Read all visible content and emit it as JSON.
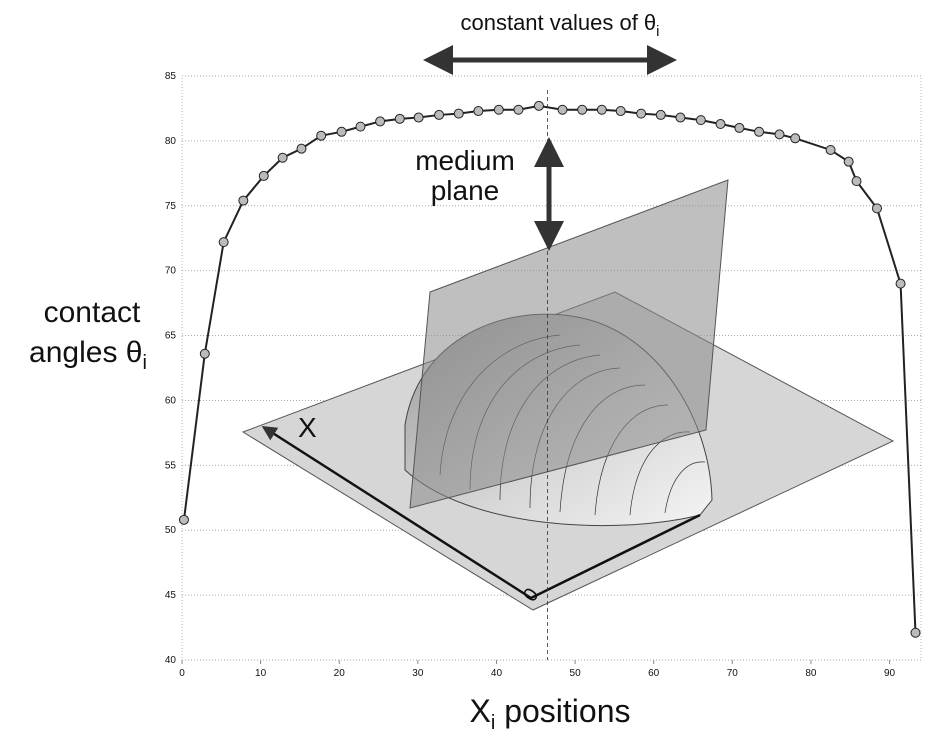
{
  "chart_data": {
    "type": "line",
    "annotations": {
      "top": {
        "text": "constant values of θ",
        "sub": "i"
      },
      "middle": [
        "medium",
        "plane"
      ],
      "axis_origin": "0",
      "axis_name": "X"
    },
    "y_label": {
      "lines": [
        "contact",
        "angles θ"
      ],
      "sub": "i"
    },
    "x_label": {
      "text": "X",
      "sub": "i",
      "rest": " positions"
    },
    "x": [
      0.25,
      2.9,
      5.3,
      7.8,
      10.4,
      12.8,
      15.2,
      17.7,
      20.3,
      22.7,
      25.2,
      27.7,
      30.1,
      32.7,
      35.2,
      37.7,
      40.3,
      42.8,
      45.4,
      48.4,
      50.9,
      53.4,
      55.8,
      58.4,
      60.9,
      63.4,
      66.0,
      68.5,
      70.9,
      73.4,
      76.0,
      78.0,
      82.5,
      84.8,
      85.8,
      88.4,
      91.4,
      93.3
    ],
    "series": [
      {
        "color": "#222222",
        "values": [
          50.8,
          63.6,
          72.2,
          75.4,
          77.3,
          78.7,
          79.4,
          80.4,
          80.7,
          81.1,
          81.5,
          81.7,
          81.8,
          82.0,
          82.1,
          82.3,
          82.4,
          82.4,
          82.7,
          82.4,
          82.4,
          82.4,
          82.3,
          82.1,
          82.0,
          81.8,
          81.6,
          81.3,
          81.0,
          80.7,
          80.5,
          80.2,
          79.3,
          78.4,
          76.9,
          74.8,
          69.0,
          42.1
        ]
      }
    ],
    "xlim": [
      0,
      94
    ],
    "xticks": [
      0,
      10,
      20,
      30,
      40,
      50,
      60,
      70,
      80,
      90
    ],
    "ylim": [
      40,
      85
    ],
    "yticks": [
      40,
      45,
      50,
      55,
      60,
      65,
      70,
      75,
      80,
      85
    ],
    "median_x": 46.5,
    "grid": true
  }
}
